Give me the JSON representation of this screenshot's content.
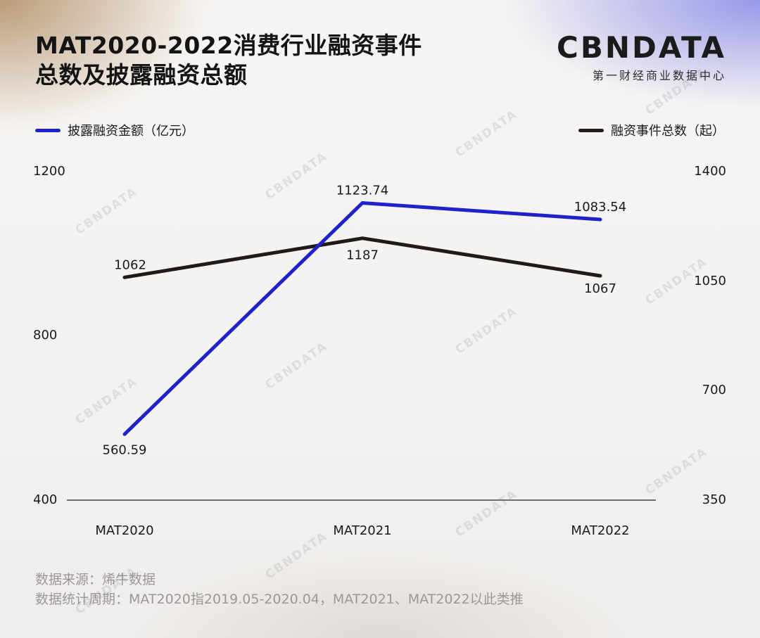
{
  "title": {
    "line1": "MAT2020-2022消费行业融资事件",
    "line2": "总数及披露融资总额"
  },
  "logo": {
    "text": "CBNDATA",
    "subtitle": "第一财经商业数据中心"
  },
  "colors": {
    "funding_amount": "#1f22c9",
    "event_count": "#221a18"
  },
  "chart_data": {
    "type": "line",
    "categories": [
      "MAT2020",
      "MAT2021",
      "MAT2022"
    ],
    "series": [
      {
        "name": "披露融资金额（亿元）",
        "axis": "left",
        "values": [
          560.59,
          1123.74,
          1083.54
        ],
        "labels": [
          "560.59",
          "1123.74",
          "1083.54"
        ]
      },
      {
        "name": "融资事件总数（起）",
        "axis": "right",
        "values": [
          1062,
          1187,
          1067
        ],
        "labels": [
          "1062",
          "1187",
          "1067"
        ]
      }
    ],
    "left_axis": {
      "ylim": [
        400,
        1200
      ],
      "ticks": [
        "1200",
        "800",
        "400"
      ]
    },
    "right_axis": {
      "ylim": [
        350,
        1400
      ],
      "ticks": [
        "1400",
        "1050",
        "700",
        "350"
      ]
    },
    "grid": false,
    "legend": "top"
  },
  "footer": {
    "source": "数据来源：烯牛数据",
    "period": "数据统计周期：MAT2020指2019.05-2020.04，MAT2021、MAT2022以此类推"
  },
  "watermark": "CBNDATA"
}
